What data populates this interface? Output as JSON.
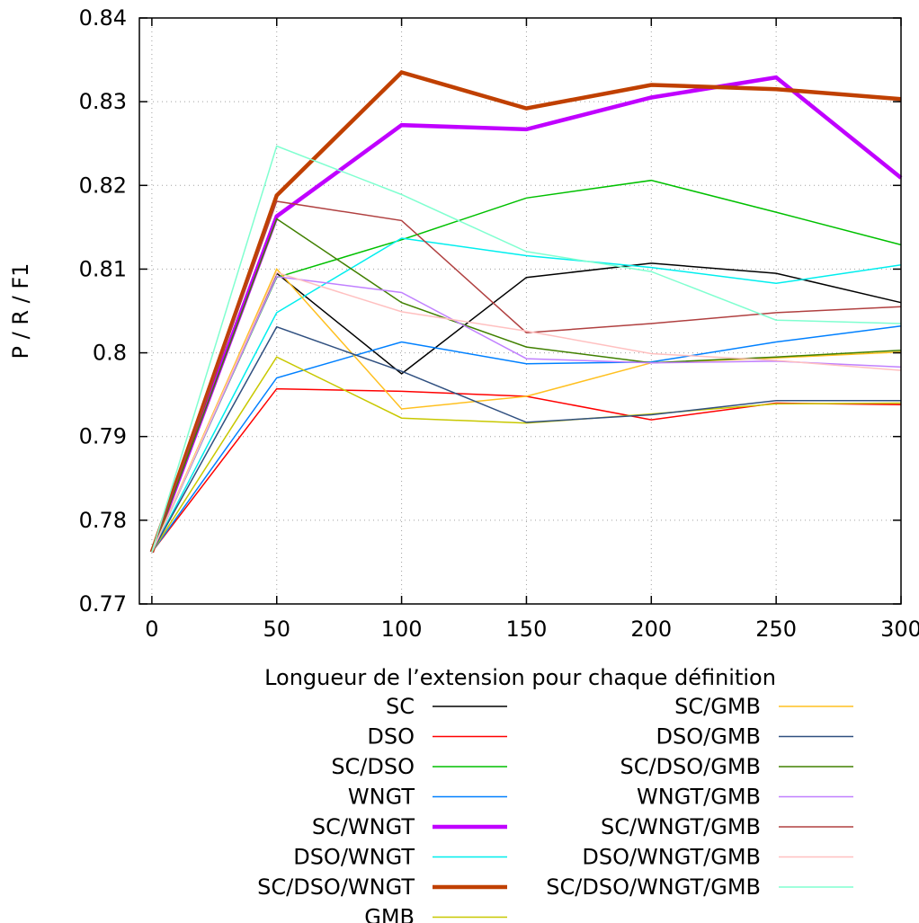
{
  "chart_data": {
    "type": "line",
    "title": "",
    "xlabel": "Longueur de l’extension pour chaque définition",
    "ylabel": "P / R / F1",
    "x": [
      0,
      50,
      100,
      150,
      200,
      250,
      300
    ],
    "xlim": [
      -5,
      300
    ],
    "ylim": [
      0.77,
      0.84
    ],
    "xticks": [
      0,
      50,
      100,
      150,
      200,
      250,
      300
    ],
    "yticks": [
      0.77,
      0.78,
      0.79,
      0.8,
      0.81,
      0.82,
      0.83,
      0.84
    ],
    "x_tick_labels": [
      "0",
      "50",
      "100",
      "150",
      "200",
      "250",
      "300"
    ],
    "y_tick_labels": [
      "0.77",
      "0.78",
      "0.79",
      "0.8",
      "0.81",
      "0.82",
      "0.83",
      "0.84"
    ],
    "grid": true,
    "legend_position": "bottom, two columns",
    "series": [
      {
        "name": "SC",
        "color": "#000000",
        "width": "thin",
        "values": [
          0.7762,
          0.8095,
          0.7975,
          0.809,
          0.8107,
          0.8095,
          0.806
        ]
      },
      {
        "name": "DSO",
        "color": "#ff0000",
        "width": "thin",
        "values": [
          0.7762,
          0.7957,
          0.7954,
          0.7948,
          0.792,
          0.794,
          0.7938
        ]
      },
      {
        "name": "SC/DSO",
        "color": "#00c000",
        "width": "thin",
        "values": [
          0.7762,
          0.809,
          0.8135,
          0.8185,
          0.8206,
          0.8168,
          0.8129
        ]
      },
      {
        "name": "WNGT",
        "color": "#0080ff",
        "width": "thin",
        "values": [
          0.7762,
          0.797,
          0.8013,
          0.7987,
          0.7989,
          0.8013,
          0.8032
        ]
      },
      {
        "name": "SC/WNGT",
        "color": "#c000ff",
        "width": "thick",
        "values": [
          0.7762,
          0.8163,
          0.8272,
          0.8267,
          0.8305,
          0.8329,
          0.8209
        ]
      },
      {
        "name": "DSO/WNGT",
        "color": "#00eeee",
        "width": "thin",
        "values": [
          0.7762,
          0.8048,
          0.8137,
          0.8116,
          0.8102,
          0.8083,
          0.8105
        ]
      },
      {
        "name": "SC/DSO/WNGT",
        "color": "#c04000",
        "width": "thick",
        "values": [
          0.7762,
          0.8188,
          0.8335,
          0.8292,
          0.832,
          0.8315,
          0.8303
        ]
      },
      {
        "name": "GMB",
        "color": "#c8c800",
        "width": "thin",
        "values": [
          0.7762,
          0.7995,
          0.7922,
          0.7916,
          0.7927,
          0.7939,
          0.794
        ]
      },
      {
        "name": "SC/GMB",
        "color": "#ffc020",
        "width": "thin",
        "values": [
          0.7762,
          0.81,
          0.7933,
          0.7948,
          0.7988,
          0.7994,
          0.8001
        ]
      },
      {
        "name": "DSO/GMB",
        "color": "#305080",
        "width": "thin",
        "values": [
          0.7762,
          0.8031,
          0.7978,
          0.7917,
          0.7926,
          0.7943,
          0.7943
        ]
      },
      {
        "name": "SC/DSO/GMB",
        "color": "#408000",
        "width": "thin",
        "values": [
          0.7762,
          0.816,
          0.806,
          0.8007,
          0.7988,
          0.7995,
          0.8003
        ]
      },
      {
        "name": "WNGT/GMB",
        "color": "#c080ff",
        "width": "thin",
        "values": [
          0.7762,
          0.8091,
          0.8072,
          0.7993,
          0.7988,
          0.799,
          0.7983
        ]
      },
      {
        "name": "SC/WNGT/GMB",
        "color": "#b04040",
        "width": "thin",
        "values": [
          0.7762,
          0.8181,
          0.8158,
          0.8024,
          0.8035,
          0.8048,
          0.8055
        ]
      },
      {
        "name": "DSO/WNGT/GMB",
        "color": "#ffc0c0",
        "width": "thin",
        "values": [
          0.7762,
          0.8096,
          0.8049,
          0.8026,
          0.7999,
          0.7991,
          0.7979
        ]
      },
      {
        "name": "SC/DSO/WNGT/GMB",
        "color": "#80ffd0",
        "width": "thin",
        "values": [
          0.7762,
          0.8247,
          0.8189,
          0.8121,
          0.8097,
          0.8039,
          0.8035
        ]
      }
    ]
  }
}
